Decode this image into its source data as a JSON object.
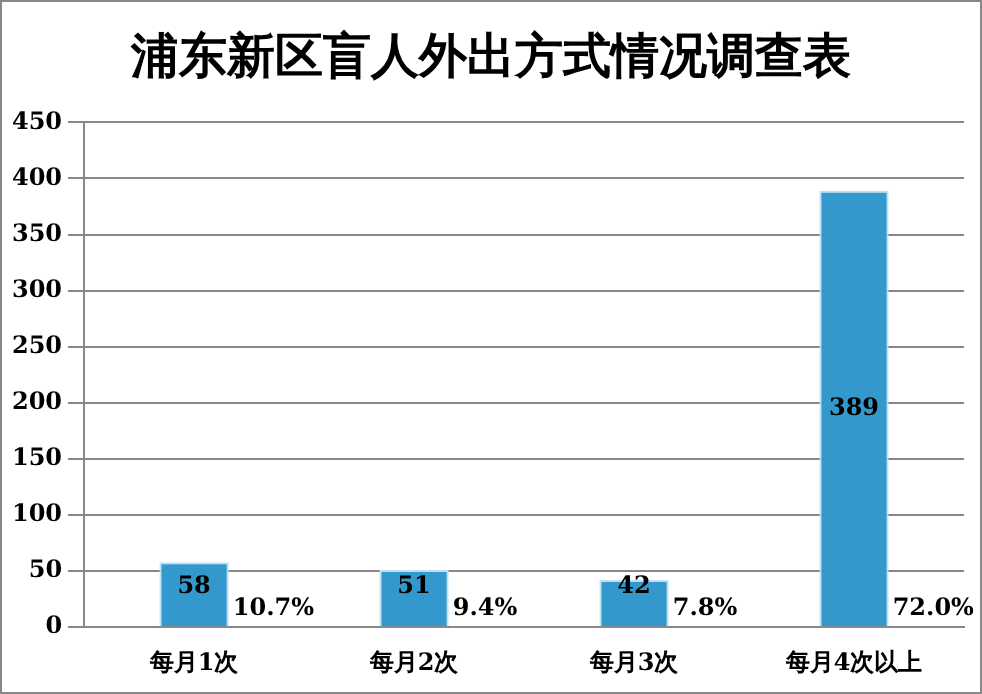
{
  "chart_data": {
    "type": "bar",
    "title": "浦东新区盲人外出方式情况调查表",
    "categories": [
      "每月1次",
      "每月2次",
      "每月3次",
      "每月4次以上"
    ],
    "values": [
      58,
      51,
      42,
      389
    ],
    "color": "#3399cc",
    "data_labels": true,
    "ylim": [
      0,
      450
    ],
    "yticks": [
      0,
      50,
      100,
      150,
      200,
      250,
      300,
      350,
      400,
      450
    ],
    "grid": "y",
    "annotations": [
      {
        "text": "10.7%",
        "x": "每月1次",
        "y": 0
      },
      {
        "text": "9.4%",
        "x": "每月2次",
        "y": 0
      },
      {
        "text": "7.8%",
        "x": "每月3次",
        "y": 0
      },
      {
        "text": "72.0%",
        "x": "每月4次以上",
        "y": 0
      }
    ]
  }
}
